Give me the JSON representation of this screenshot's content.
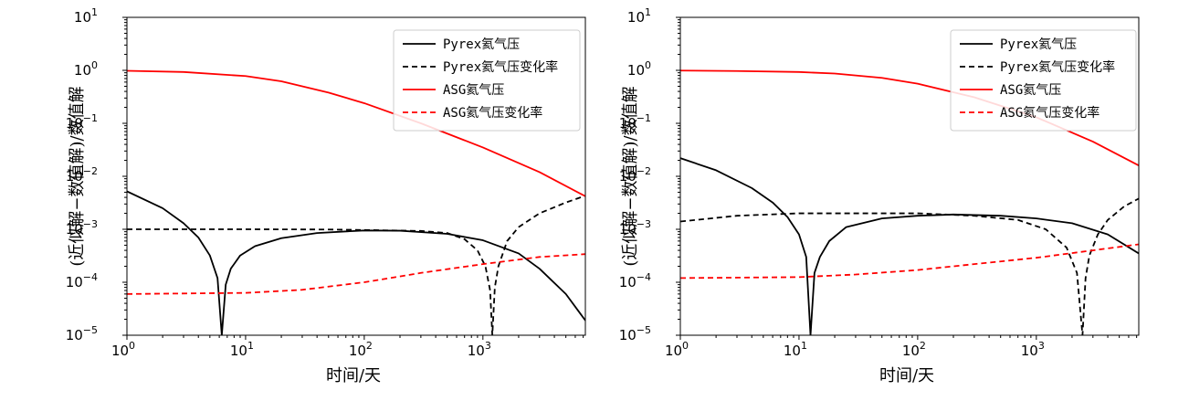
{
  "chart_data": [
    {
      "type": "line",
      "title": "",
      "xlabel": "时间/天",
      "ylabel": "(近似解−数值解)/数值解",
      "xscale": "log",
      "yscale": "log",
      "xlim": [
        1,
        7300
      ],
      "ylim": [
        1e-05,
        10
      ],
      "x_tick_labels": [
        "10^0",
        "10^1",
        "10^2",
        "10^3"
      ],
      "y_tick_labels": [
        "10^-5",
        "10^-4",
        "10^-3",
        "10^-2",
        "10^-1",
        "10^0",
        "10^1"
      ],
      "grid": false,
      "legend_position": "top-right",
      "series": [
        {
          "name": "Pyrex氦气压",
          "color": "#000000",
          "dash": "solid",
          "x": [
            1,
            2,
            3,
            4,
            5,
            5.8,
            6.3,
            6.8,
            7.5,
            9,
            12,
            20,
            40,
            100,
            200,
            500,
            1000,
            2000,
            3000,
            5000,
            7300
          ],
          "y": [
            0.0052,
            0.0025,
            0.0013,
            0.0007,
            0.00032,
            0.00012,
            1e-05,
            9e-05,
            0.00018,
            0.00032,
            0.00048,
            0.00068,
            0.00085,
            0.00095,
            0.00094,
            0.00082,
            0.00062,
            0.00035,
            0.00018,
            6e-05,
            1.9e-05
          ]
        },
        {
          "name": "Pyrex氦气压变化率",
          "color": "#000000",
          "dash": "dashed",
          "x": [
            1,
            10,
            50,
            100,
            300,
            500,
            700,
            900,
            1050,
            1150,
            1200,
            1260,
            1350,
            1600,
            2000,
            3000,
            5000,
            7300
          ],
          "y": [
            0.001,
            0.001,
            0.00099,
            0.00097,
            0.00093,
            0.00085,
            0.00065,
            0.0004,
            0.0002,
            7e-05,
            1e-05,
            8e-05,
            0.0002,
            0.0006,
            0.0011,
            0.002,
            0.0032,
            0.0043
          ]
        },
        {
          "name": "ASG氦气压",
          "color": "#ff0000",
          "dash": "solid",
          "x": [
            1,
            3,
            10,
            20,
            50,
            100,
            300,
            1000,
            3000,
            7300
          ],
          "y": [
            0.98,
            0.93,
            0.78,
            0.62,
            0.38,
            0.24,
            0.1,
            0.035,
            0.012,
            0.0042
          ]
        },
        {
          "name": "ASG氦气压变化率",
          "color": "#ff0000",
          "dash": "dashed",
          "x": [
            1,
            10,
            30,
            100,
            300,
            1000,
            3000,
            7300
          ],
          "y": [
            6e-05,
            6.3e-05,
            7.2e-05,
            0.0001,
            0.00015,
            0.00022,
            0.0003,
            0.00034
          ]
        }
      ]
    },
    {
      "type": "line",
      "title": "",
      "xlabel": "时间/天",
      "ylabel": "(近似解−数值解)/数值解",
      "xscale": "log",
      "yscale": "log",
      "xlim": [
        1,
        7300
      ],
      "ylim": [
        1e-05,
        10
      ],
      "x_tick_labels": [
        "10^0",
        "10^1",
        "10^2",
        "10^3"
      ],
      "y_tick_labels": [
        "10^-5",
        "10^-4",
        "10^-3",
        "10^-2",
        "10^-1",
        "10^0",
        "10^1"
      ],
      "grid": false,
      "legend_position": "top-right",
      "series": [
        {
          "name": "Pyrex氦气压",
          "color": "#000000",
          "dash": "solid",
          "x": [
            1,
            2,
            4,
            6,
            8,
            10,
            11.5,
            12.5,
            13.5,
            15,
            18,
            25,
            50,
            100,
            200,
            500,
            1000,
            2000,
            4000,
            7300
          ],
          "y": [
            0.022,
            0.013,
            0.006,
            0.0032,
            0.0017,
            0.0008,
            0.0003,
            1e-05,
            0.00015,
            0.0003,
            0.0006,
            0.0011,
            0.0016,
            0.0018,
            0.0019,
            0.0018,
            0.0016,
            0.0013,
            0.0008,
            0.00035
          ]
        },
        {
          "name": "Pyrex氦气压变化率",
          "color": "#000000",
          "dash": "dashed",
          "x": [
            1,
            3,
            10,
            30,
            100,
            300,
            700,
            1200,
            1800,
            2200,
            2450,
            2600,
            2800,
            3300,
            4000,
            5500,
            7300
          ],
          "y": [
            0.0014,
            0.0018,
            0.002,
            0.002,
            0.002,
            0.0018,
            0.0015,
            0.001,
            0.00045,
            0.00015,
            1e-05,
            0.00012,
            0.00032,
            0.0008,
            0.0015,
            0.0027,
            0.0038
          ]
        },
        {
          "name": "ASG氦气压",
          "color": "#ff0000",
          "dash": "solid",
          "x": [
            1,
            3,
            10,
            20,
            50,
            100,
            300,
            1000,
            3000,
            7300
          ],
          "y": [
            0.99,
            0.97,
            0.93,
            0.87,
            0.72,
            0.56,
            0.31,
            0.13,
            0.045,
            0.016
          ]
        },
        {
          "name": "ASG氦气压变化率",
          "color": "#ff0000",
          "dash": "dashed",
          "x": [
            1,
            10,
            30,
            100,
            300,
            1000,
            3000,
            7300
          ],
          "y": [
            0.00012,
            0.000125,
            0.00014,
            0.00017,
            0.00022,
            0.00029,
            0.0004,
            0.00052
          ]
        }
      ]
    }
  ]
}
